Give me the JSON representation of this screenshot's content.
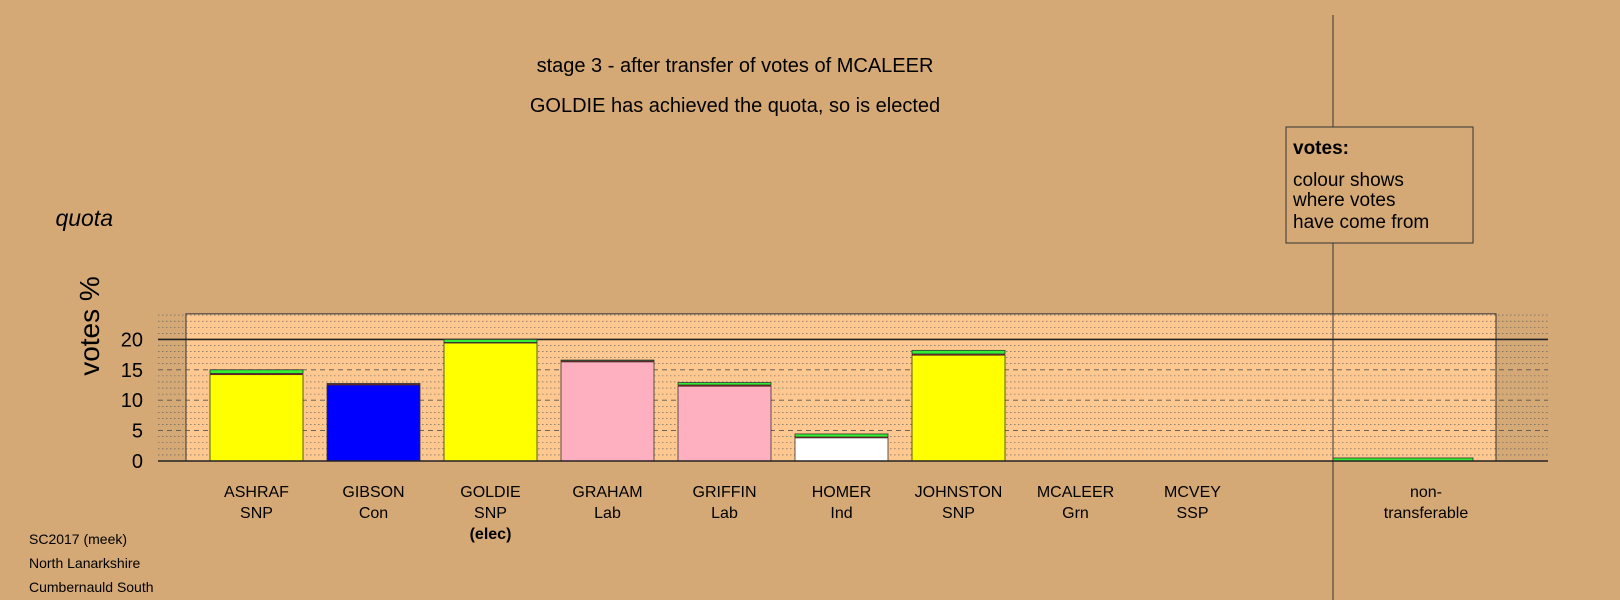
{
  "chart_data": {
    "type": "bar",
    "stacked": true,
    "title": "stage 3 - after transfer of votes of MCALEER",
    "subtitle": "GOLDIE has achieved the quota, so is elected",
    "ylabel": "votes %",
    "quota_label": "quota",
    "quota": 20,
    "ylim": [
      0,
      25
    ],
    "yticks": [
      0,
      5,
      10,
      15,
      20
    ],
    "grid": "dashed major every 5, dotted minor every 1",
    "legend": {
      "title": "votes:",
      "lines": [
        "colour shows",
        "where votes",
        "have come from"
      ],
      "placement": "top-right"
    },
    "bars": [
      {
        "name": "ASHRAF",
        "party": "SNP",
        "note": "",
        "base": 14.2,
        "base_color": "#ffff00",
        "transfer_prev": 0.2,
        "transfer_grn": 0.6
      },
      {
        "name": "GIBSON",
        "party": "Con",
        "note": "",
        "base": 12.5,
        "base_color": "#0000ff",
        "transfer_prev": 0.15,
        "transfer_grn": 0.1
      },
      {
        "name": "GOLDIE",
        "party": "SNP",
        "note": "(elec)",
        "base": 19.4,
        "base_color": "#ffff00",
        "transfer_prev": 0.1,
        "transfer_grn": 0.5
      },
      {
        "name": "GRAHAM",
        "party": "Lab",
        "note": "",
        "base": 16.3,
        "base_color": "#ffb0c0",
        "transfer_prev": 0.15,
        "transfer_grn": 0.15
      },
      {
        "name": "GRIFFIN",
        "party": "Lab",
        "note": "",
        "base": 12.3,
        "base_color": "#ffb0c0",
        "transfer_prev": 0.2,
        "transfer_grn": 0.4
      },
      {
        "name": "HOMER",
        "party": "Ind",
        "note": "",
        "base": 3.8,
        "base_color": "#ffffff",
        "transfer_prev": 0.15,
        "transfer_grn": 0.5
      },
      {
        "name": "JOHNSTON",
        "party": "SNP",
        "note": "",
        "base": 17.4,
        "base_color": "#ffff00",
        "transfer_prev": 0.2,
        "transfer_grn": 0.6
      },
      {
        "name": "MCALEER",
        "party": "Grn",
        "note": "",
        "base": 0,
        "base_color": "#22cc22",
        "transfer_prev": 0,
        "transfer_grn": 0
      },
      {
        "name": "MCVEY",
        "party": "SSP",
        "note": "",
        "base": 0,
        "base_color": "#dd0000",
        "transfer_prev": 0,
        "transfer_grn": 0
      }
    ],
    "nontransferable": {
      "label_line1": "non-",
      "label_line2": "transferable",
      "value": 0.5,
      "color": "#33ee33"
    },
    "colors": {
      "snp": "#ffff00",
      "con": "#0000ff",
      "lab": "#ffb0c0",
      "ind": "#ffffff",
      "grn_transfer": "#33ee33",
      "prev_transfer": "#8b1a1a"
    }
  },
  "footer": {
    "line1": "SC2017 (meek)",
    "line2": "North Lanarkshire",
    "line3": "Cumbernauld South"
  }
}
